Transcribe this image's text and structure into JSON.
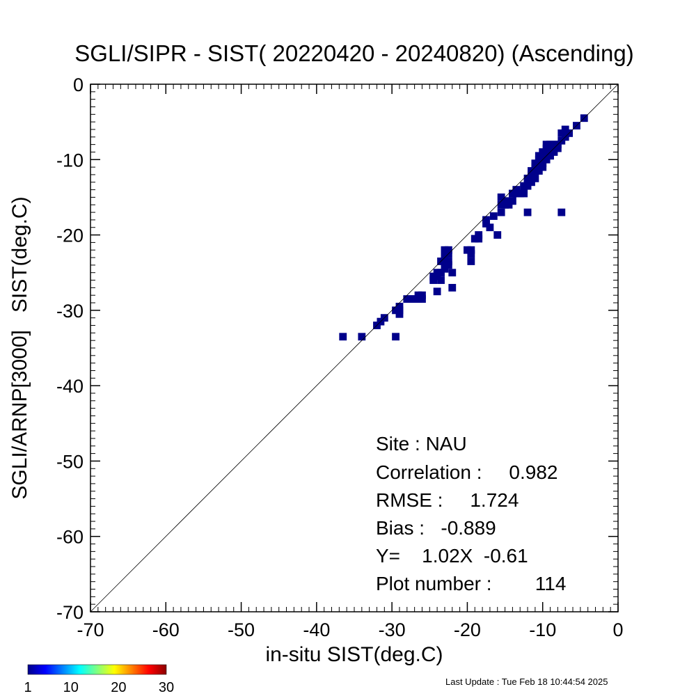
{
  "chart_data": {
    "type": "heatmap",
    "title": "SGLI/SIPR - SIST( 20220420 - 20240820) (Ascending)",
    "xlabel": "in-situ SIST(deg.C)",
    "ylabel": "SGLI/ARNP[3000]   SIST(deg.C)",
    "xlim": [
      -70,
      0
    ],
    "ylim": [
      -70,
      0
    ],
    "xticks": [
      "-70",
      "-60",
      "-50",
      "-40",
      "-30",
      "-20",
      "-10",
      "0"
    ],
    "yticks": [
      "0",
      "-10",
      "-20",
      "-30",
      "-40",
      "-50",
      "-60",
      "-70"
    ],
    "grid": false,
    "reference_line": {
      "type": "one-to-one",
      "from": [
        -70,
        -70
      ],
      "to": [
        0,
        0
      ]
    },
    "bin_size": 1.0,
    "bin_color": "#00008b",
    "bins": [
      [
        -37,
        -34
      ],
      [
        -34.5,
        -34
      ],
      [
        -32.5,
        -32.5
      ],
      [
        -32,
        -32
      ],
      [
        -31.5,
        -31.5
      ],
      [
        -30,
        -30.5
      ],
      [
        -30,
        -34
      ],
      [
        -29.5,
        -30
      ],
      [
        -29.5,
        -31
      ],
      [
        -29.5,
        -30.5
      ],
      [
        -28.5,
        -29
      ],
      [
        -28,
        -29
      ],
      [
        -27.5,
        -29
      ],
      [
        -27,
        -29
      ],
      [
        -27,
        -28.5
      ],
      [
        -26.5,
        -28.5
      ],
      [
        -26.5,
        -29
      ],
      [
        -25,
        -26.5
      ],
      [
        -25,
        -26
      ],
      [
        -24.5,
        -26
      ],
      [
        -24.5,
        -25.5
      ],
      [
        -24.5,
        -28
      ],
      [
        -24,
        -25.5
      ],
      [
        -24,
        -24
      ],
      [
        -24,
        -26.5
      ],
      [
        -23.5,
        -25
      ],
      [
        -23.5,
        -23
      ],
      [
        -23.5,
        -23.5
      ],
      [
        -23.5,
        -22.5
      ],
      [
        -23.5,
        -24.5
      ],
      [
        -23,
        -22.5
      ],
      [
        -23,
        -23
      ],
      [
        -23,
        -24
      ],
      [
        -23,
        -24.5
      ],
      [
        -22.5,
        -25.5
      ],
      [
        -22.5,
        -27.5
      ],
      [
        -20.5,
        -22.5
      ],
      [
        -20,
        -22.5
      ],
      [
        -20,
        -24
      ],
      [
        -20,
        -23
      ],
      [
        -19.5,
        -21
      ],
      [
        -19,
        -21
      ],
      [
        -19,
        -20.5
      ],
      [
        -18,
        -18.5
      ],
      [
        -18,
        -19
      ],
      [
        -17.5,
        -19.5
      ],
      [
        -17,
        -18
      ],
      [
        -16.5,
        -20.5
      ],
      [
        -16,
        -17.5
      ],
      [
        -16,
        -16.5
      ],
      [
        -16,
        -15.5
      ],
      [
        -15.5,
        -16
      ],
      [
        -15.5,
        -16.5
      ],
      [
        -15,
        -16.5
      ],
      [
        -15,
        -16
      ],
      [
        -14.5,
        -16
      ],
      [
        -14.5,
        -15
      ],
      [
        -14,
        -15
      ],
      [
        -14,
        -14.5
      ],
      [
        -13.5,
        -15
      ],
      [
        -13,
        -14
      ],
      [
        -13,
        -14.5
      ],
      [
        -13,
        -15
      ],
      [
        -12.5,
        -13
      ],
      [
        -12.5,
        -13.5
      ],
      [
        -12.5,
        -14
      ],
      [
        -12.5,
        -17.5
      ],
      [
        -12,
        -12
      ],
      [
        -12,
        -12.5
      ],
      [
        -12,
        -13
      ],
      [
        -12,
        -13.5
      ],
      [
        -11.5,
        -11
      ],
      [
        -11.5,
        -11.5
      ],
      [
        -11.5,
        -12
      ],
      [
        -11.5,
        -13
      ],
      [
        -11,
        -10.5
      ],
      [
        -11,
        -11
      ],
      [
        -11,
        -11.5
      ],
      [
        -11,
        -12
      ],
      [
        -11,
        -10
      ],
      [
        -10.5,
        -9.5
      ],
      [
        -10.5,
        -10.5
      ],
      [
        -10.5,
        -11
      ],
      [
        -10.5,
        -11.5
      ],
      [
        -10,
        -9
      ],
      [
        -10,
        -9.5
      ],
      [
        -10,
        -10
      ],
      [
        -10,
        -10.5
      ],
      [
        -10,
        -8.5
      ],
      [
        -9.5,
        -9
      ],
      [
        -9.5,
        -9.5
      ],
      [
        -9.5,
        -10
      ],
      [
        -9.5,
        -8.5
      ],
      [
        -9,
        -8.5
      ],
      [
        -9,
        -9
      ],
      [
        -9,
        -9.5
      ],
      [
        -8.5,
        -8.5
      ],
      [
        -8.5,
        -9
      ],
      [
        -8,
        -8
      ],
      [
        -8,
        -7
      ],
      [
        -8,
        -17.5
      ],
      [
        -7.5,
        -7.5
      ],
      [
        -7.5,
        -6.5
      ],
      [
        -7,
        -7
      ],
      [
        -6,
        -6
      ],
      [
        -5,
        -5
      ]
    ],
    "colorbar": {
      "min": 1,
      "max": 30,
      "tick_labels": [
        "1",
        "10",
        "20",
        "30"
      ],
      "tick_values": [
        1,
        10,
        20,
        30
      ],
      "colors": [
        "#00008b",
        "#0000ff",
        "#0080ff",
        "#00ffff",
        "#80ff80",
        "#ffff00",
        "#ff8000",
        "#ff0000",
        "#8b0000"
      ]
    },
    "stats": {
      "site": "Site : NAU",
      "correlation": "Correlation :     0.982",
      "rmse": "RMSE :     1.724",
      "bias": "Bias :   -0.889",
      "regression": "Y=    1.02X  -0.61",
      "plot_number": "Plot number :        114"
    },
    "last_update": "Last Update : Tue Feb 18 10:44:54 2025"
  }
}
